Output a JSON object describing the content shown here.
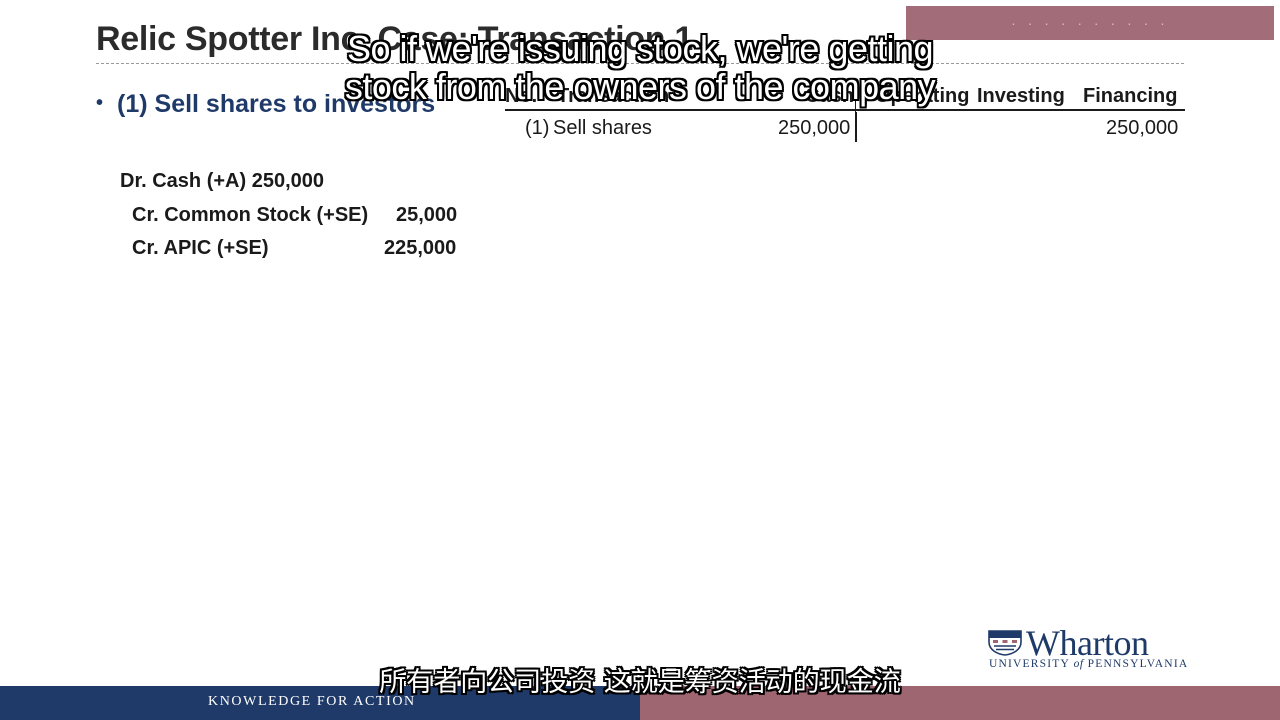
{
  "slide": {
    "title": "Relic Spotter Inc. Case: Transaction 1",
    "bullet": "(1) Sell shares to investors"
  },
  "journal_entry": {
    "debit": "Dr. Cash (+A) 250,000",
    "credit1_label": "Cr. Common Stock (+SE)",
    "credit1_amount": "25,000",
    "credit2_label": "Cr. APIC (+SE)",
    "credit2_amount": "225,000"
  },
  "cash_flow_table": {
    "headers": {
      "no": "No.",
      "transaction": "Transaction",
      "cash": "Cash",
      "operating": "Operating",
      "investing": "Investing",
      "financing": "Financing"
    },
    "rows": [
      {
        "no": "(1)",
        "transaction": "Sell shares",
        "cash": "250,000",
        "operating": "",
        "investing": "",
        "financing": "250,000"
      }
    ]
  },
  "subtitles": {
    "english_line1": "So if we're issuing stock, we're getting",
    "english_line2": "stock from the owners of the company",
    "chinese": "所有者向公司投资 这就是筹资活动的现金流"
  },
  "branding": {
    "logo_word": "Wharton",
    "logo_sub_pre": "UNIVERSITY ",
    "logo_sub_of": "of",
    "logo_sub_post": " PENNSYLVANIA",
    "footer": "KNOWLEDGE FOR ACTION",
    "watermark": "· · · · · · · · · ·",
    "colors": {
      "navy": "#1f3a68",
      "mauve": "#9e6671"
    }
  }
}
